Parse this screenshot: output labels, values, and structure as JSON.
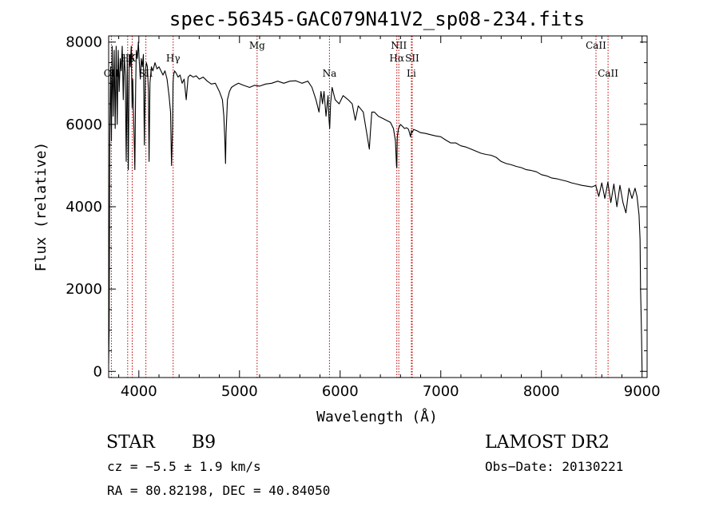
{
  "chart_data": {
    "type": "line",
    "title": "spec-56345-GAC079N41V2_sp08-234.fits",
    "xlabel": "Wavelength (Å)",
    "ylabel": "Flux (relative)",
    "xlim": [
      3700,
      9050
    ],
    "ylim": [
      -150,
      8150
    ],
    "xticks": [
      4000,
      5000,
      6000,
      7000,
      8000,
      9000
    ],
    "xtick_labels": [
      "4000",
      "5000",
      "6000",
      "7000",
      "8000",
      "9000"
    ],
    "yticks": [
      0,
      2000,
      4000,
      6000,
      8000
    ],
    "ytick_labels": [
      "0",
      "2000",
      "4000",
      "6000",
      "8000"
    ],
    "line_color": "#000000",
    "marker_color": "#c00000",
    "grid": false,
    "series": [
      {
        "x": [
          3700,
          3705,
          3712,
          3720,
          3728,
          3735,
          3745,
          3755,
          3765,
          3775,
          3785,
          3795,
          3805,
          3815,
          3825,
          3835,
          3845,
          3855,
          3865,
          3875,
          3885,
          3895,
          3905,
          3915,
          3925,
          3933,
          3940,
          3950,
          3960,
          3968,
          3975,
          3985,
          3995,
          4005,
          4015,
          4025,
          4035,
          4045,
          4055,
          4065,
          4075,
          4085,
          4095,
          4102,
          4110,
          4125,
          4140,
          4160,
          4180,
          4200,
          4220,
          4240,
          4260,
          4280,
          4300,
          4315,
          4325,
          4335,
          4340,
          4345,
          4355,
          4370,
          4390,
          4410,
          4430,
          4450,
          4471,
          4490,
          4510,
          4540,
          4570,
          4600,
          4640,
          4680,
          4720,
          4760,
          4800,
          4830,
          4845,
          4855,
          4861,
          4867,
          4880,
          4900,
          4920,
          4950,
          4990,
          5040,
          5100,
          5150,
          5200,
          5260,
          5320,
          5380,
          5440,
          5500,
          5560,
          5620,
          5680,
          5720,
          5760,
          5790,
          5810,
          5825,
          5840,
          5860,
          5880,
          5890,
          5896,
          5905,
          5920,
          5950,
          5990,
          6030,
          6080,
          6120,
          6150,
          6180,
          6230,
          6270,
          6290,
          6300,
          6315,
          6340,
          6380,
          6420,
          6460,
          6500,
          6530,
          6550,
          6560,
          6563,
          6568,
          6580,
          6600,
          6620,
          6640,
          6660,
          6680,
          6700,
          6708,
          6716,
          6730,
          6760,
          6800,
          6850,
          6900,
          6950,
          7000,
          7050,
          7100,
          7150,
          7200,
          7250,
          7300,
          7350,
          7400,
          7450,
          7500,
          7550,
          7600,
          7650,
          7700,
          7750,
          7800,
          7850,
          7900,
          7950,
          8000,
          8050,
          8100,
          8150,
          8200,
          8250,
          8300,
          8350,
          8400,
          8450,
          8500,
          8540,
          8570,
          8600,
          8630,
          8660,
          8690,
          8720,
          8750,
          8780,
          8810,
          8840,
          8870,
          8900,
          8930,
          8950,
          8970,
          8980,
          8985,
          8990,
          8995,
          9000
        ],
        "y": [
          200,
          1000,
          5800,
          7400,
          5600,
          7900,
          6200,
          7800,
          5900,
          7900,
          6000,
          7800,
          6800,
          7600,
          7300,
          7900,
          6600,
          7700,
          7200,
          5100,
          7600,
          4900,
          7700,
          7400,
          7900,
          6400,
          7100,
          6000,
          4900,
          6900,
          7800,
          7600,
          8000,
          7500,
          7100,
          7600,
          7400,
          7700,
          5500,
          7300,
          7500,
          7400,
          6800,
          5100,
          7000,
          7400,
          7300,
          7500,
          7350,
          7400,
          7300,
          7200,
          7300,
          7100,
          6700,
          6300,
          5000,
          5900,
          7000,
          7200,
          7300,
          7250,
          7150,
          7200,
          7000,
          7100,
          6600,
          7150,
          7200,
          7150,
          7180,
          7100,
          7150,
          7050,
          6980,
          7000,
          6800,
          6600,
          6200,
          5600,
          5050,
          5800,
          6600,
          6800,
          6900,
          6950,
          7000,
          6950,
          6900,
          6950,
          6930,
          6980,
          7000,
          7050,
          7000,
          7050,
          7060,
          7000,
          7050,
          6900,
          6600,
          6300,
          6800,
          6500,
          6800,
          6200,
          6700,
          6100,
          5900,
          6500,
          6900,
          6600,
          6500,
          6700,
          6600,
          6500,
          6100,
          6450,
          6300,
          5700,
          5400,
          5800,
          6300,
          6300,
          6200,
          6150,
          6100,
          6050,
          5900,
          5600,
          5000,
          4950,
          5700,
          5900,
          6000,
          5950,
          5900,
          5920,
          5880,
          5700,
          5850,
          5800,
          5880,
          5850,
          5800,
          5780,
          5750,
          5720,
          5700,
          5620,
          5550,
          5550,
          5480,
          5450,
          5400,
          5350,
          5300,
          5270,
          5250,
          5200,
          5100,
          5050,
          5020,
          4980,
          4950,
          4900,
          4880,
          4850,
          4780,
          4750,
          4700,
          4680,
          4650,
          4620,
          4580,
          4550,
          4520,
          4500,
          4480,
          4520,
          4250,
          4580,
          4200,
          4600,
          4100,
          4550,
          4000,
          4520,
          4100,
          3850,
          4450,
          4200,
          4450,
          4250,
          3800,
          3200,
          2000,
          1500,
          800,
          0
        ]
      }
    ],
    "line_markers": [
      {
        "name": "OII",
        "x": 3727,
        "label_level": 2
      },
      {
        "name": "K",
        "x": 3934,
        "label_level": 1
      },
      {
        "name": "Hβ",
        "x": 3889,
        "label_level": 1
      },
      {
        "name": "SII",
        "x": 4070,
        "label_level": 2
      },
      {
        "name": "Hγ",
        "x": 4341,
        "label_level": 1
      },
      {
        "name": "Mg",
        "x": 5175,
        "label_level": 0
      },
      {
        "name": "Na",
        "x": 5894,
        "label_level": 2
      },
      {
        "name": "NII",
        "x": 6583,
        "label_level": 0
      },
      {
        "name": "Hα",
        "x": 6563,
        "label_level": 1
      },
      {
        "name": "SII",
        "x": 6716,
        "label_level": 1
      },
      {
        "name": "Li",
        "x": 6708,
        "label_level": 2
      },
      {
        "name": "CaII",
        "x": 8542,
        "label_level": 0
      },
      {
        "name": "CaII",
        "x": 8662,
        "label_level": 2
      }
    ]
  },
  "info": {
    "object_class": "STAR",
    "subclass": "B9",
    "survey": "LAMOST DR2",
    "cz": "cz = −5.5 ± 1.9 km/s",
    "obs_date": "Obs−Date: 20130221",
    "coords": "RA =  80.82198, DEC =  40.84050"
  }
}
